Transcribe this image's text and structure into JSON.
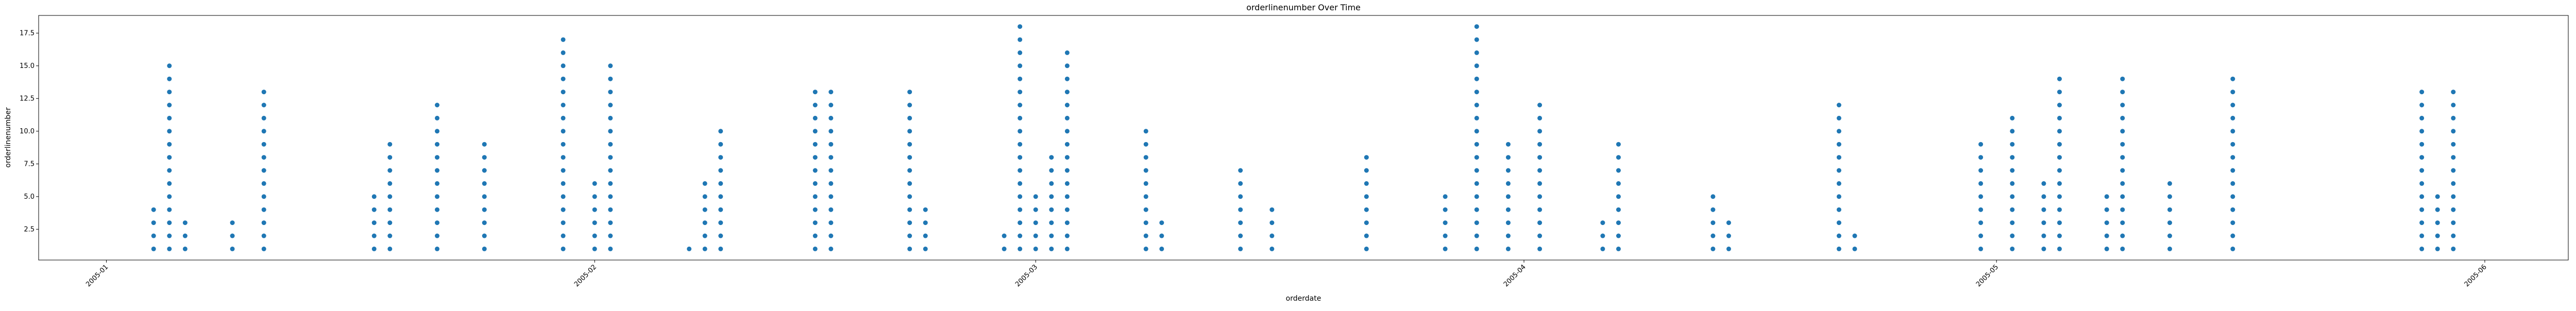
{
  "chart_data": {
    "type": "scatter",
    "title": "orderlinenumber Over Time",
    "xlabel": "orderdate",
    "ylabel": "orderlinenumber",
    "color": "#1f77b4",
    "xlim": [
      12779.7,
      12940.3
    ],
    "ylim": [
      0.15,
      18.85
    ],
    "xticks": [
      {
        "value": 12784,
        "label": "2005-01"
      },
      {
        "value": 12815,
        "label": "2005-02"
      },
      {
        "value": 12843,
        "label": "2005-03"
      },
      {
        "value": 12874,
        "label": "2005-04"
      },
      {
        "value": 12904,
        "label": "2005-05"
      },
      {
        "value": 12935,
        "label": "2005-06"
      }
    ],
    "yticks": [
      2.5,
      {
        "value": 5,
        "label": "5.0"
      },
      7.5,
      {
        "value": 10,
        "label": "10.0"
      },
      12.5,
      {
        "value": 15,
        "label": "15.0"
      },
      17.5
    ],
    "series": [
      {
        "x": [
          12787,
          12787,
          12787,
          12787,
          12788,
          12788,
          12788,
          12788,
          12788,
          12788,
          12788,
          12788,
          12788,
          12788,
          12788,
          12788,
          12788,
          12788,
          12788,
          12789,
          12789,
          12789,
          12792,
          12792,
          12792,
          12794,
          12794,
          12794,
          12794,
          12794,
          12794,
          12794,
          12794,
          12794,
          12794,
          12794,
          12794,
          12794,
          12801,
          12801,
          12801,
          12801,
          12801,
          12802,
          12802,
          12802,
          12802,
          12802,
          12802,
          12802,
          12802,
          12802,
          12805,
          12805,
          12805,
          12805,
          12805,
          12805,
          12805,
          12805,
          12805,
          12805,
          12805,
          12805,
          12808,
          12808,
          12808,
          12808,
          12808,
          12808,
          12808,
          12808,
          12808,
          12813,
          12813,
          12813,
          12813,
          12813,
          12813,
          12813,
          12813,
          12813,
          12813,
          12813,
          12813,
          12813,
          12813,
          12813,
          12813,
          12813,
          12815,
          12815,
          12815,
          12815,
          12815,
          12815,
          12816,
          12816,
          12816,
          12816,
          12816,
          12816,
          12816,
          12816,
          12816,
          12816,
          12816,
          12816,
          12816,
          12816,
          12816,
          12821,
          12822,
          12822,
          12822,
          12822,
          12822,
          12822,
          12823,
          12823,
          12823,
          12823,
          12823,
          12823,
          12823,
          12823,
          12823,
          12823,
          12829,
          12829,
          12829,
          12829,
          12829,
          12829,
          12829,
          12829,
          12829,
          12829,
          12829,
          12829,
          12829,
          12830,
          12830,
          12830,
          12830,
          12830,
          12830,
          12830,
          12830,
          12830,
          12830,
          12830,
          12830,
          12830,
          12835,
          12835,
          12835,
          12835,
          12835,
          12835,
          12835,
          12835,
          12835,
          12835,
          12835,
          12835,
          12835,
          12836,
          12836,
          12836,
          12836,
          12841,
          12841,
          12842,
          12842,
          12842,
          12842,
          12842,
          12842,
          12842,
          12842,
          12842,
          12842,
          12842,
          12842,
          12842,
          12842,
          12842,
          12842,
          12842,
          12842,
          12843,
          12843,
          12843,
          12843,
          12843,
          12844,
          12844,
          12844,
          12844,
          12844,
          12844,
          12844,
          12844,
          12845,
          12845,
          12845,
          12845,
          12845,
          12845,
          12845,
          12845,
          12845,
          12845,
          12845,
          12845,
          12845,
          12845,
          12845,
          12845,
          12850,
          12850,
          12850,
          12850,
          12850,
          12850,
          12850,
          12850,
          12850,
          12850,
          12851,
          12851,
          12851,
          12856,
          12856,
          12856,
          12856,
          12856,
          12856,
          12856,
          12858,
          12858,
          12858,
          12858,
          12864,
          12864,
          12864,
          12864,
          12864,
          12864,
          12864,
          12864,
          12869,
          12869,
          12869,
          12869,
          12869,
          12871,
          12871,
          12871,
          12871,
          12871,
          12871,
          12871,
          12871,
          12871,
          12871,
          12871,
          12871,
          12871,
          12871,
          12871,
          12871,
          12871,
          12871,
          12873,
          12873,
          12873,
          12873,
          12873,
          12873,
          12873,
          12873,
          12873,
          12875,
          12875,
          12875,
          12875,
          12875,
          12875,
          12875,
          12875,
          12875,
          12875,
          12875,
          12875,
          12879,
          12879,
          12879,
          12880,
          12880,
          12880,
          12880,
          12880,
          12880,
          12880,
          12880,
          12880,
          12886,
          12886,
          12886,
          12886,
          12886,
          12887,
          12887,
          12887,
          12894,
          12894,
          12894,
          12894,
          12894,
          12894,
          12894,
          12894,
          12894,
          12894,
          12894,
          12894,
          12895,
          12895,
          12903,
          12903,
          12903,
          12903,
          12903,
          12903,
          12903,
          12903,
          12903,
          12905,
          12905,
          12905,
          12905,
          12905,
          12905,
          12905,
          12905,
          12905,
          12905,
          12905,
          12907,
          12907,
          12907,
          12907,
          12907,
          12907,
          12908,
          12908,
          12908,
          12908,
          12908,
          12908,
          12908,
          12908,
          12908,
          12908,
          12908,
          12908,
          12908,
          12908,
          12911,
          12911,
          12911,
          12911,
          12911,
          12912,
          12912,
          12912,
          12912,
          12912,
          12912,
          12912,
          12912,
          12912,
          12912,
          12912,
          12912,
          12912,
          12912,
          12915,
          12915,
          12915,
          12915,
          12915,
          12915,
          12919,
          12919,
          12919,
          12919,
          12919,
          12919,
          12919,
          12919,
          12919,
          12919,
          12919,
          12919,
          12919,
          12919,
          12931,
          12931,
          12931,
          12931,
          12931,
          12931,
          12931,
          12931,
          12931,
          12931,
          12931,
          12931,
          12931,
          12932,
          12932,
          12932,
          12932,
          12932,
          12933,
          12933,
          12933,
          12933,
          12933,
          12933,
          12933,
          12933,
          12933,
          12933,
          12933,
          12933,
          12933
        ],
        "y": [
          1,
          2,
          3,
          4,
          1,
          2,
          3,
          4,
          5,
          6,
          7,
          8,
          9,
          10,
          11,
          12,
          13,
          14,
          15,
          1,
          2,
          3,
          1,
          2,
          3,
          1,
          2,
          3,
          4,
          5,
          6,
          7,
          8,
          9,
          10,
          11,
          12,
          13,
          1,
          2,
          3,
          4,
          5,
          1,
          2,
          3,
          4,
          5,
          6,
          7,
          8,
          9,
          1,
          2,
          3,
          4,
          5,
          6,
          7,
          8,
          9,
          10,
          11,
          12,
          1,
          2,
          3,
          4,
          5,
          6,
          7,
          8,
          9,
          1,
          2,
          3,
          4,
          5,
          6,
          7,
          8,
          9,
          10,
          11,
          12,
          13,
          14,
          15,
          16,
          17,
          1,
          2,
          3,
          4,
          5,
          6,
          1,
          2,
          3,
          4,
          5,
          6,
          7,
          8,
          9,
          10,
          11,
          12,
          13,
          14,
          15,
          1,
          1,
          2,
          3,
          4,
          5,
          6,
          1,
          2,
          3,
          4,
          5,
          6,
          7,
          8,
          9,
          10,
          1,
          2,
          3,
          4,
          5,
          6,
          7,
          8,
          9,
          10,
          11,
          12,
          13,
          1,
          2,
          3,
          4,
          5,
          6,
          7,
          8,
          9,
          10,
          11,
          12,
          13,
          1,
          2,
          3,
          4,
          5,
          6,
          7,
          8,
          9,
          10,
          11,
          12,
          13,
          1,
          2,
          3,
          4,
          1,
          2,
          1,
          2,
          3,
          4,
          5,
          6,
          7,
          8,
          9,
          10,
          11,
          12,
          13,
          14,
          15,
          16,
          17,
          18,
          1,
          2,
          3,
          4,
          5,
          1,
          2,
          3,
          4,
          5,
          6,
          7,
          8,
          1,
          2,
          3,
          4,
          5,
          6,
          7,
          8,
          9,
          10,
          11,
          12,
          13,
          14,
          15,
          16,
          1,
          2,
          3,
          4,
          5,
          6,
          7,
          8,
          9,
          10,
          1,
          2,
          3,
          1,
          2,
          3,
          4,
          5,
          6,
          7,
          1,
          2,
          3,
          4,
          1,
          2,
          3,
          4,
          5,
          6,
          7,
          8,
          1,
          2,
          3,
          4,
          5,
          1,
          2,
          3,
          4,
          5,
          6,
          7,
          8,
          9,
          10,
          11,
          12,
          13,
          14,
          15,
          16,
          17,
          18,
          1,
          2,
          3,
          4,
          5,
          6,
          7,
          8,
          9,
          1,
          2,
          3,
          4,
          5,
          6,
          7,
          8,
          9,
          10,
          11,
          12,
          1,
          2,
          3,
          1,
          2,
          3,
          4,
          5,
          6,
          7,
          8,
          9,
          1,
          2,
          3,
          4,
          5,
          1,
          2,
          3,
          1,
          2,
          3,
          4,
          5,
          6,
          7,
          8,
          9,
          10,
          11,
          12,
          1,
          2,
          1,
          2,
          3,
          4,
          5,
          6,
          7,
          8,
          9,
          1,
          2,
          3,
          4,
          5,
          6,
          7,
          8,
          9,
          10,
          11,
          1,
          2,
          3,
          4,
          5,
          6,
          1,
          2,
          3,
          4,
          5,
          6,
          7,
          8,
          9,
          10,
          11,
          12,
          13,
          14,
          1,
          2,
          3,
          4,
          5,
          1,
          2,
          3,
          4,
          5,
          6,
          7,
          8,
          9,
          10,
          11,
          12,
          13,
          14,
          1,
          2,
          3,
          4,
          5,
          6,
          1,
          2,
          3,
          4,
          5,
          6,
          7,
          8,
          9,
          10,
          11,
          12,
          13,
          14,
          1,
          2,
          3,
          4,
          5,
          6,
          7,
          8,
          9,
          10,
          11,
          12,
          13,
          1,
          2,
          3,
          4,
          5,
          1,
          2,
          3,
          4,
          5,
          6,
          7,
          8,
          9,
          10,
          11,
          12,
          13
        ]
      }
    ]
  }
}
